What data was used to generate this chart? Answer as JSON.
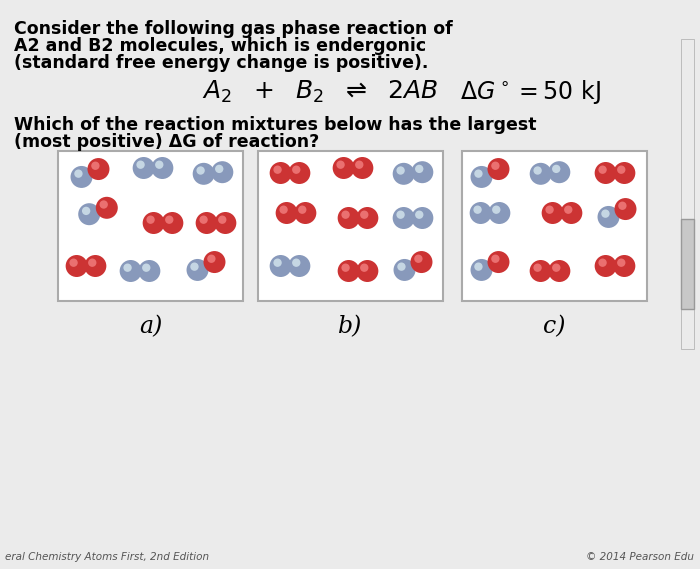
{
  "bg_color": "#ebebeb",
  "white": "#ffffff",
  "title_text1": "Consider the following gas phase reaction of",
  "title_text2": "A2 and B2 molecules, which is endergonic",
  "title_text3": "(standard free energy change is positive).",
  "question1": "Which of the reaction mixtures below has the largest",
  "question2": "(most positive) ΔG of reaction?",
  "label_a": "a)",
  "label_b": "b)",
  "label_c": "c)",
  "footer_left": "eral Chemistry Atoms First, 2nd Edition",
  "footer_right": "© 2014 Pearson Edu",
  "red_color": "#cc3333",
  "blue_color": "#8899bb",
  "box_edge": "#aaaaaa",
  "figw": 7.0,
  "figh": 5.69,
  "dpi": 100
}
